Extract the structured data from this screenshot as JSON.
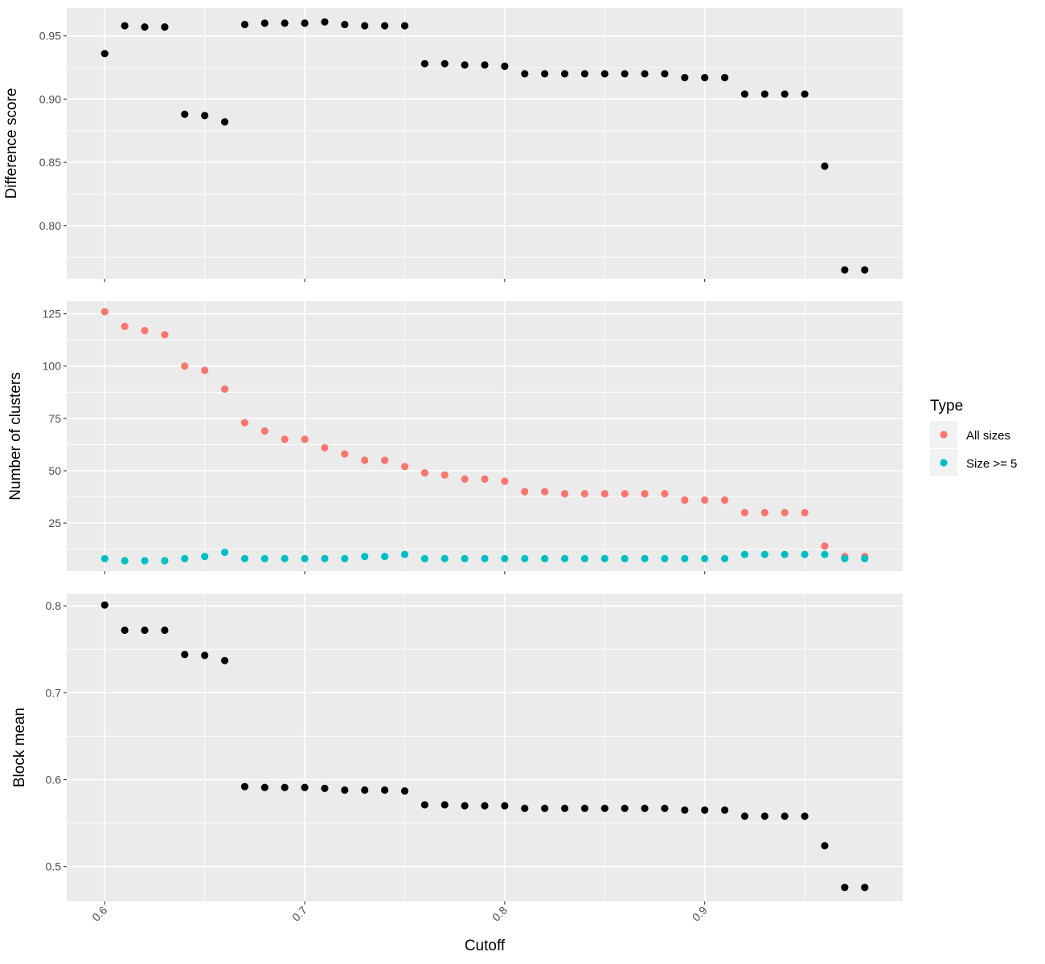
{
  "chart_data": {
    "type": "scatter",
    "xlabel": "Cutoff",
    "xlim": [
      0.581,
      0.999
    ],
    "x_ticks": [
      0.6,
      0.7,
      0.8,
      0.9
    ],
    "x_tick_labels": [
      "0.6",
      "0.7",
      "0.8",
      "0.9"
    ],
    "grid": true,
    "legend": {
      "title": "Type",
      "placement": "right",
      "entries": [
        {
          "label": "All sizes",
          "color": "#F8766D"
        },
        {
          "label": "Size >= 5",
          "color": "#00BFC4"
        }
      ]
    },
    "x": [
      0.6,
      0.61,
      0.62,
      0.63,
      0.64,
      0.65,
      0.66,
      0.67,
      0.68,
      0.69,
      0.7,
      0.71,
      0.72,
      0.73,
      0.74,
      0.75,
      0.76,
      0.77,
      0.78,
      0.79,
      0.8,
      0.81,
      0.82,
      0.83,
      0.84,
      0.85,
      0.86,
      0.87,
      0.88,
      0.89,
      0.9,
      0.91,
      0.92,
      0.93,
      0.94,
      0.95,
      0.96,
      0.97,
      0.98
    ],
    "panels": [
      {
        "ylabel": "Difference score",
        "ylim": [
          0.758,
          0.972
        ],
        "y_ticks": [
          0.8,
          0.85,
          0.9,
          0.95
        ],
        "y_tick_labels": [
          "0.80",
          "0.85",
          "0.90",
          "0.95"
        ],
        "y_minor": [
          0.775,
          0.825,
          0.875,
          0.925
        ],
        "series": [
          {
            "color": "#000000",
            "values": [
              0.936,
              0.958,
              0.957,
              0.957,
              0.888,
              0.887,
              0.882,
              0.959,
              0.96,
              0.96,
              0.96,
              0.961,
              0.959,
              0.958,
              0.958,
              0.958,
              0.928,
              0.928,
              0.927,
              0.927,
              0.926,
              0.92,
              0.92,
              0.92,
              0.92,
              0.92,
              0.92,
              0.92,
              0.92,
              0.917,
              0.917,
              0.917,
              0.904,
              0.904,
              0.904,
              0.904,
              0.847,
              0.765,
              0.765
            ]
          }
        ]
      },
      {
        "ylabel": "Number of clusters",
        "ylim": [
          2,
          131
        ],
        "y_ticks": [
          25,
          50,
          75,
          100,
          125
        ],
        "y_tick_labels": [
          "25",
          "50",
          "75",
          "100",
          "125"
        ],
        "y_minor": [
          12.5,
          37.5,
          62.5,
          87.5,
          112.5
        ],
        "series": [
          {
            "name": "All sizes",
            "color": "#F8766D",
            "values": [
              126,
              119,
              117,
              115,
              100,
              98,
              89,
              73,
              69,
              65,
              65,
              61,
              58,
              55,
              55,
              52,
              49,
              48,
              46,
              46,
              45,
              40,
              40,
              39,
              39,
              39,
              39,
              39,
              39,
              36,
              36,
              36,
              30,
              30,
              30,
              30,
              14,
              9,
              9
            ]
          },
          {
            "name": "Size >= 5",
            "color": "#00BFC4",
            "values": [
              8,
              7,
              7,
              7,
              8,
              9,
              11,
              8,
              8,
              8,
              8,
              8,
              8,
              9,
              9,
              10,
              8,
              8,
              8,
              8,
              8,
              8,
              8,
              8,
              8,
              8,
              8,
              8,
              8,
              8,
              8,
              8,
              10,
              10,
              10,
              10,
              10,
              8,
              8
            ]
          }
        ]
      },
      {
        "ylabel": "Block mean",
        "ylim": [
          0.46,
          0.814
        ],
        "y_ticks": [
          0.5,
          0.6,
          0.7,
          0.8
        ],
        "y_tick_labels": [
          "0.5",
          "0.6",
          "0.7",
          "0.8"
        ],
        "y_minor": [
          0.55,
          0.65,
          0.75
        ],
        "series": [
          {
            "color": "#000000",
            "values": [
              0.801,
              0.772,
              0.772,
              0.772,
              0.744,
              0.743,
              0.737,
              0.592,
              0.591,
              0.591,
              0.591,
              0.59,
              0.588,
              0.588,
              0.588,
              0.587,
              0.571,
              0.571,
              0.57,
              0.57,
              0.57,
              0.567,
              0.567,
              0.567,
              0.567,
              0.567,
              0.567,
              0.567,
              0.567,
              0.565,
              0.565,
              0.565,
              0.558,
              0.558,
              0.558,
              0.558,
              0.524,
              0.476,
              0.476
            ]
          }
        ]
      }
    ]
  }
}
